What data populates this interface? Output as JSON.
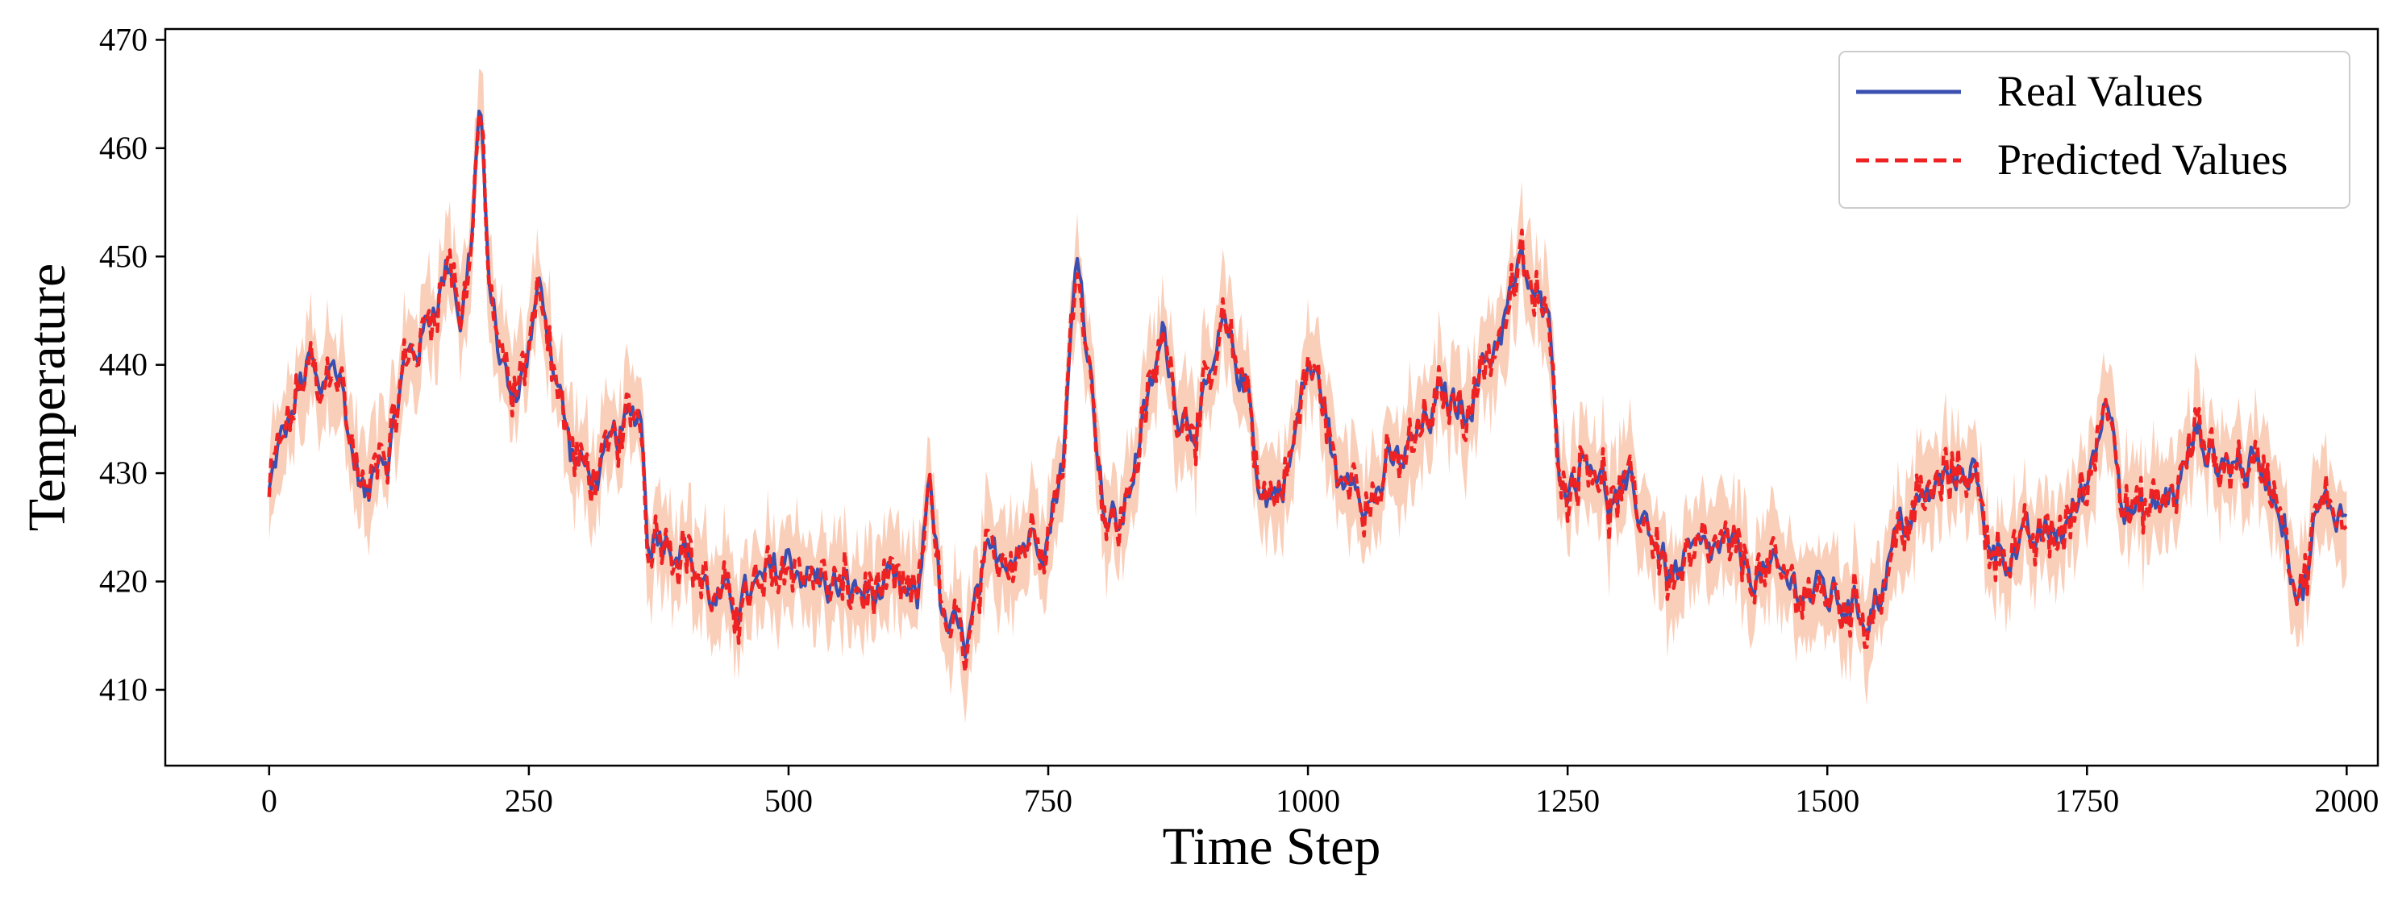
{
  "chart_data": {
    "type": "line",
    "title": "",
    "xlabel": "Time Step",
    "ylabel": "Temperature",
    "xlim": [
      -100,
      2030
    ],
    "ylim": [
      403,
      471
    ],
    "x_ticks": [
      0,
      250,
      500,
      750,
      1000,
      1250,
      1500,
      1750,
      2000
    ],
    "y_ticks": [
      410,
      420,
      430,
      440,
      450,
      460,
      470
    ],
    "grid": false,
    "legend": {
      "position": "top-right",
      "entries": [
        {
          "label": "Real Values",
          "style": "solid",
          "color": "#3a4fb0"
        },
        {
          "label": "Predicted Values",
          "style": "dashed",
          "color": "#ee2222"
        }
      ]
    },
    "band": {
      "color": "#f9c3a9",
      "half_width": 4
    },
    "keypoints": {
      "x": [
        0,
        8,
        18,
        30,
        40,
        50,
        60,
        70,
        80,
        95,
        105,
        115,
        130,
        145,
        160,
        175,
        185,
        195,
        203,
        210,
        220,
        235,
        250,
        262,
        275,
        290,
        305,
        320,
        335,
        350,
        358,
        364,
        375,
        400,
        430,
        445,
        470,
        500,
        530,
        560,
        600,
        625,
        636,
        648,
        660,
        672,
        690,
        710,
        730,
        750,
        765,
        778,
        790,
        805,
        820,
        835,
        850,
        862,
        875,
        890,
        905,
        918,
        930,
        942,
        955,
        970,
        985,
        1000,
        1015,
        1030,
        1045,
        1060,
        1075,
        1090,
        1110,
        1130,
        1150,
        1165,
        1180,
        1195,
        1205,
        1220,
        1235,
        1245,
        1260,
        1275,
        1290,
        1310,
        1330,
        1350,
        1370,
        1400,
        1430,
        1460,
        1490,
        1520,
        1535,
        1550,
        1570,
        1590,
        1610,
        1625,
        1640,
        1650,
        1665,
        1690,
        1710,
        1730,
        1750,
        1765,
        1775,
        1785,
        1800,
        1820,
        1840,
        1855,
        1875,
        1900,
        1925,
        1940,
        1950,
        1958,
        1970,
        1990,
        2000
      ],
      "real": [
        428,
        432,
        434,
        438,
        440,
        436,
        441,
        438,
        432,
        427,
        433,
        432,
        440,
        442,
        446,
        450,
        444,
        452,
        465,
        449,
        442,
        436,
        442,
        447,
        440,
        432,
        430,
        430,
        433,
        435,
        436,
        424,
        425,
        423,
        418,
        418,
        419,
        422,
        420,
        419,
        419,
        418,
        431,
        416,
        415,
        414,
        421,
        423,
        424,
        425,
        432,
        451,
        440,
        426,
        425,
        432,
        438,
        443,
        436,
        435,
        437,
        443,
        440,
        438,
        428,
        428,
        432,
        440,
        437,
        428,
        431,
        427,
        430,
        431,
        434,
        437,
        436,
        439,
        442,
        446,
        449,
        446,
        442,
        428,
        431,
        432,
        427,
        428,
        425,
        420,
        422,
        423,
        421,
        420,
        419,
        418,
        417,
        419,
        425,
        427,
        429,
        430,
        431,
        425,
        423,
        423,
        424,
        425,
        429,
        436,
        437,
        427,
        426,
        427,
        429,
        434,
        431,
        431,
        430,
        426,
        420,
        419,
        426,
        427,
        426
      ]
    }
  }
}
